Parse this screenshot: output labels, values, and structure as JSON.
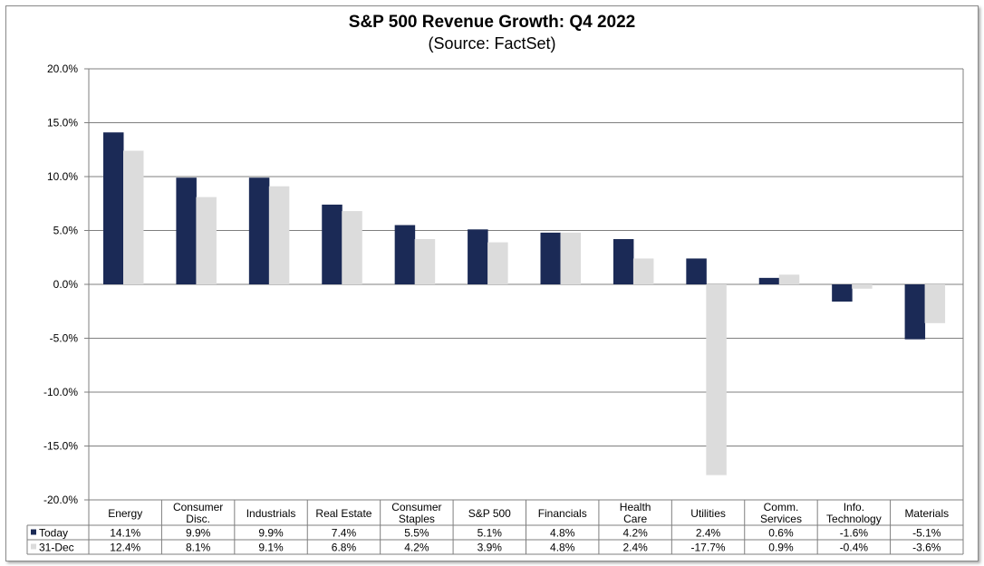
{
  "chart_data": {
    "type": "bar",
    "title": "S&P 500 Revenue Growth: Q4 2022",
    "subtitle": "(Source: FactSet)",
    "categories": [
      [
        "Energy"
      ],
      [
        "Consumer",
        "Disc."
      ],
      [
        "Industrials"
      ],
      [
        "Real Estate"
      ],
      [
        "Consumer",
        "Staples"
      ],
      [
        "S&P 500"
      ],
      [
        "Financials"
      ],
      [
        "Health",
        "Care"
      ],
      [
        "Utilities"
      ],
      [
        "Comm.",
        "Services"
      ],
      [
        "Info.",
        "Technology"
      ],
      [
        "Materials"
      ]
    ],
    "series": [
      {
        "name": "Today",
        "color": "#1b2a56",
        "values": [
          14.1,
          9.9,
          9.9,
          7.4,
          5.5,
          5.1,
          4.8,
          4.2,
          2.4,
          0.6,
          -1.6,
          -5.1
        ],
        "labels": [
          "14.1%",
          "9.9%",
          "9.9%",
          "7.4%",
          "5.5%",
          "5.1%",
          "4.8%",
          "4.2%",
          "2.4%",
          "0.6%",
          "-1.6%",
          "-5.1%"
        ]
      },
      {
        "name": "31-Dec",
        "color": "#dcdcdc",
        "values": [
          12.4,
          8.1,
          9.1,
          6.8,
          4.2,
          3.9,
          4.8,
          2.4,
          -17.7,
          0.9,
          -0.4,
          -3.6
        ],
        "labels": [
          "12.4%",
          "8.1%",
          "9.1%",
          "6.8%",
          "4.2%",
          "3.9%",
          "4.8%",
          "2.4%",
          "-17.7%",
          "0.9%",
          "-0.4%",
          "-3.6%"
        ]
      }
    ],
    "ylim": [
      -20,
      20
    ],
    "yticks": [
      20,
      15,
      10,
      5,
      0,
      -5,
      -10,
      -15,
      -20
    ],
    "ytick_labels": [
      "20.0%",
      "15.0%",
      "10.0%",
      "5.0%",
      "0.0%",
      "-5.0%",
      "-10.0%",
      "-15.0%",
      "-20.0%"
    ],
    "grid": true,
    "legend": "data-table"
  }
}
